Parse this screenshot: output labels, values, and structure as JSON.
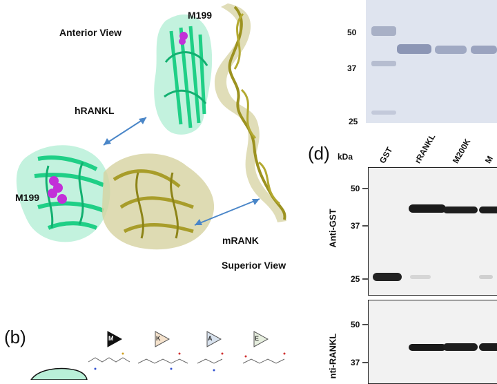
{
  "structure_panel": {
    "anterior_view": "Anterior View",
    "superior_view": "Superior View",
    "hrankl": "hRANKL",
    "mrank": "mRANK",
    "m199_top": "M199",
    "m199_left": "M199"
  },
  "panel_b": {
    "letter": "(b)",
    "amino_acids": [
      "M",
      "K",
      "A",
      "E"
    ]
  },
  "gel_c": {
    "markers": [
      "50",
      "37",
      "25"
    ]
  },
  "panel_d": {
    "letter": "(d)",
    "kda": "kDa",
    "lanes": [
      "GST",
      "rRANKL",
      "M200K",
      "M"
    ],
    "blot1_label": "Anti-GST",
    "blot1_markers": [
      "50",
      "37",
      "25"
    ],
    "blot2_label": "nti-RANKL",
    "blot2_markers": [
      "50",
      "37"
    ]
  },
  "colors": {
    "rankl_green": "#1fcf86",
    "rank_olive": "#a89d2a",
    "arrow_blue": "#4a86c8",
    "met_magenta": "#c230d8"
  }
}
